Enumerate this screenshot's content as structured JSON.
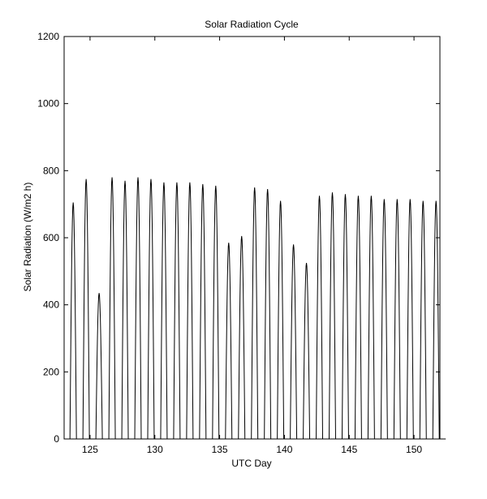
{
  "chart_data": {
    "type": "line",
    "title": "Solar Radiation Cycle",
    "xlabel": "UTC Day",
    "ylabel": "Solar Radiation (W/m2 h)",
    "xlim": [
      123,
      152
    ],
    "ylim": [
      0,
      1200
    ],
    "xticks": [
      125,
      130,
      135,
      140,
      145,
      150
    ],
    "yticks": [
      0,
      200,
      400,
      600,
      800,
      1000,
      1200
    ],
    "grid": false,
    "line_color": "#000000",
    "series": [
      {
        "daily_peaks": [
          {
            "day": 123,
            "peak": 705
          },
          {
            "day": 124,
            "peak": 775
          },
          {
            "day": 125,
            "peak": 435
          },
          {
            "day": 126,
            "peak": 780
          },
          {
            "day": 127,
            "peak": 770
          },
          {
            "day": 128,
            "peak": 780
          },
          {
            "day": 129,
            "peak": 775
          },
          {
            "day": 130,
            "peak": 765
          },
          {
            "day": 131,
            "peak": 765
          },
          {
            "day": 132,
            "peak": 765
          },
          {
            "day": 133,
            "peak": 760
          },
          {
            "day": 134,
            "peak": 755
          },
          {
            "day": 135,
            "peak": 585
          },
          {
            "day": 136,
            "peak": 605
          },
          {
            "day": 137,
            "peak": 750
          },
          {
            "day": 138,
            "peak": 745
          },
          {
            "day": 139,
            "peak": 710
          },
          {
            "day": 140,
            "peak": 580
          },
          {
            "day": 141,
            "peak": 525
          },
          {
            "day": 142,
            "peak": 725
          },
          {
            "day": 143,
            "peak": 735
          },
          {
            "day": 144,
            "peak": 730
          },
          {
            "day": 145,
            "peak": 725
          },
          {
            "day": 146,
            "peak": 725
          },
          {
            "day": 147,
            "peak": 715
          },
          {
            "day": 148,
            "peak": 715
          },
          {
            "day": 149,
            "peak": 715
          },
          {
            "day": 150,
            "peak": 710
          },
          {
            "day": 151,
            "peak": 710
          }
        ]
      }
    ]
  }
}
